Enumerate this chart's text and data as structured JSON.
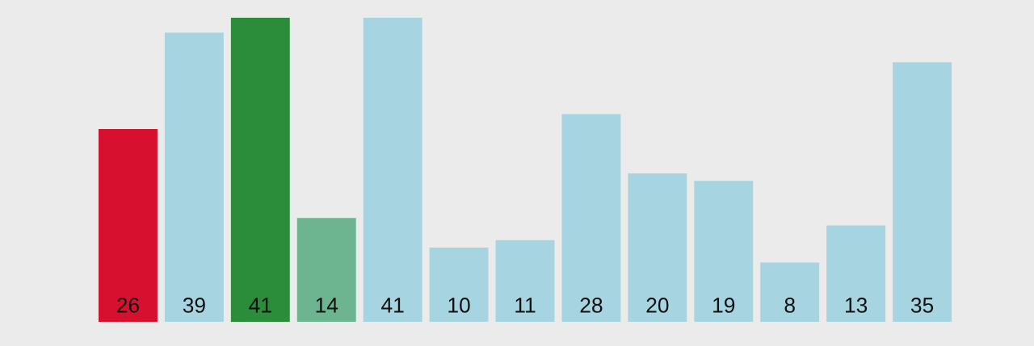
{
  "chart_data": {
    "type": "bar",
    "categories": [
      null,
      null,
      null,
      null,
      null,
      null,
      null,
      null,
      null,
      null,
      null,
      null,
      null
    ],
    "values": [
      26,
      39,
      41,
      14,
      41,
      10,
      11,
      28,
      20,
      19,
      8,
      13,
      35
    ],
    "colors": [
      "#d8102f",
      "#a6d4e1",
      "#2b8c3a",
      "#6cb590",
      "#a6d4e1",
      "#a6d4e1",
      "#a6d4e1",
      "#a6d4e1",
      "#a6d4e1",
      "#a6d4e1",
      "#a6d4e1",
      "#a6d4e1",
      "#a6d4e1"
    ],
    "data_labels": true
  }
}
